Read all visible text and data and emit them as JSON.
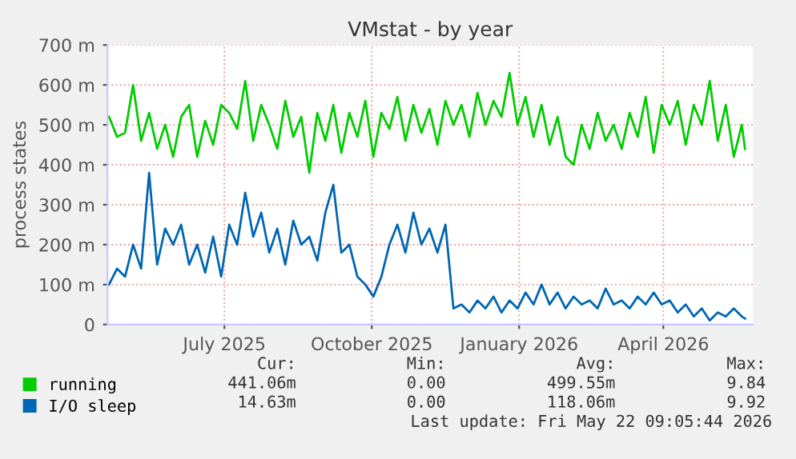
{
  "chart_data": {
    "type": "line",
    "title": "VMstat - by year",
    "ylabel": "process states",
    "x": [
      "2025-04-20",
      "2025-04-25",
      "2025-04-30",
      "2025-05-05",
      "2025-05-10",
      "2025-05-15",
      "2025-05-20",
      "2025-05-25",
      "2025-05-30",
      "2025-06-04",
      "2025-06-09",
      "2025-06-14",
      "2025-06-19",
      "2025-06-24",
      "2025-06-29",
      "2025-07-04",
      "2025-07-09",
      "2025-07-14",
      "2025-07-19",
      "2025-07-24",
      "2025-07-29",
      "2025-08-03",
      "2025-08-08",
      "2025-08-13",
      "2025-08-18",
      "2025-08-23",
      "2025-08-28",
      "2025-09-02",
      "2025-09-07",
      "2025-09-12",
      "2025-09-17",
      "2025-09-22",
      "2025-09-27",
      "2025-10-02",
      "2025-10-07",
      "2025-10-12",
      "2025-10-17",
      "2025-10-22",
      "2025-10-27",
      "2025-11-01",
      "2025-11-06",
      "2025-11-11",
      "2025-11-16",
      "2025-11-21",
      "2025-11-26",
      "2025-12-01",
      "2025-12-06",
      "2025-12-11",
      "2025-12-16",
      "2025-12-21",
      "2025-12-26",
      "2025-12-31",
      "2026-01-05",
      "2026-01-10",
      "2026-01-15",
      "2026-01-20",
      "2026-01-25",
      "2026-01-30",
      "2026-02-04",
      "2026-02-09",
      "2026-02-14",
      "2026-02-19",
      "2026-02-24",
      "2026-03-01",
      "2026-03-06",
      "2026-03-11",
      "2026-03-16",
      "2026-03-21",
      "2026-03-26",
      "2026-03-31",
      "2026-04-05",
      "2026-04-10",
      "2026-04-15",
      "2026-04-20",
      "2026-04-25",
      "2026-04-30",
      "2026-05-05",
      "2026-05-10",
      "2026-05-15",
      "2026-05-20",
      "2026-05-22"
    ],
    "series": [
      {
        "name": "running",
        "color": "#00cc00",
        "values": [
          520,
          470,
          480,
          600,
          460,
          530,
          440,
          500,
          420,
          520,
          550,
          420,
          510,
          450,
          550,
          530,
          490,
          610,
          460,
          550,
          500,
          440,
          560,
          470,
          520,
          380,
          530,
          460,
          550,
          430,
          530,
          470,
          560,
          420,
          530,
          490,
          570,
          460,
          550,
          480,
          540,
          450,
          560,
          500,
          550,
          470,
          580,
          500,
          560,
          520,
          630,
          500,
          570,
          470,
          550,
          450,
          520,
          420,
          400,
          500,
          440,
          530,
          460,
          500,
          440,
          530,
          470,
          570,
          430,
          550,
          500,
          560,
          450,
          550,
          500,
          610,
          460,
          550,
          420,
          500,
          440
        ]
      },
      {
        "name": "I/O sleep",
        "color": "#0066b3",
        "values": [
          100,
          140,
          120,
          200,
          140,
          380,
          150,
          240,
          200,
          250,
          150,
          200,
          130,
          220,
          120,
          250,
          200,
          330,
          220,
          280,
          180,
          240,
          150,
          260,
          200,
          220,
          160,
          280,
          350,
          180,
          200,
          120,
          100,
          70,
          120,
          200,
          250,
          180,
          280,
          200,
          240,
          180,
          250,
          40,
          50,
          30,
          60,
          40,
          70,
          30,
          60,
          40,
          80,
          50,
          100,
          50,
          80,
          40,
          70,
          50,
          60,
          40,
          90,
          50,
          60,
          40,
          70,
          50,
          80,
          50,
          60,
          30,
          50,
          20,
          40,
          10,
          30,
          20,
          40,
          20,
          15
        ]
      }
    ],
    "xlim": [
      "2025-04-19",
      "2026-05-27"
    ],
    "xticks": [
      {
        "value": "2025-07-01",
        "label": "July 2025"
      },
      {
        "value": "2025-10-01",
        "label": "October 2025"
      },
      {
        "value": "2026-01-01",
        "label": "January 2026"
      },
      {
        "value": "2026-04-01",
        "label": "April 2026"
      }
    ],
    "ylim": [
      0,
      700
    ],
    "yticks": [
      0,
      {
        "value": 100,
        "label": "100 m"
      },
      {
        "value": 200,
        "label": "200 m"
      },
      {
        "value": 300,
        "label": "300 m"
      },
      {
        "value": 400,
        "label": "400 m"
      },
      {
        "value": 500,
        "label": "500 m"
      },
      {
        "value": 600,
        "label": "600 m"
      },
      {
        "value": 700,
        "label": "700 m"
      }
    ],
    "grid": true,
    "legend": "bottom left",
    "marker": "none",
    "line_style": "solid",
    "annotations": [
      "Cur:",
      "Min:",
      "Avg:",
      "Max:",
      "441.06m",
      "0.00",
      "499.55m",
      "9.84",
      "14.63m",
      "0.00",
      "118.06m",
      "9.92",
      "Last update: Fri May 22 09:05:44 2026"
    ]
  }
}
